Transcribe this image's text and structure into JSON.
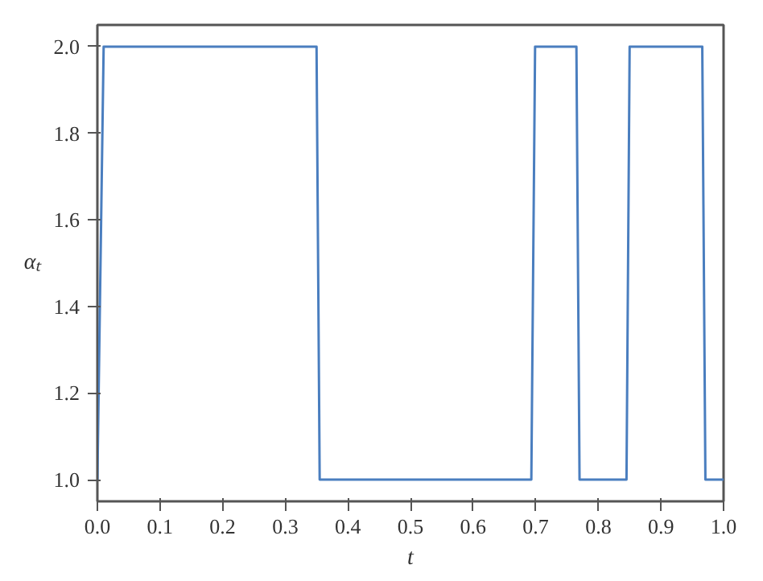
{
  "chart_data": {
    "type": "line",
    "xlabel": "t",
    "ylabel": "αₜ",
    "x": [
      0.0,
      0.01,
      0.35,
      0.355,
      0.693,
      0.699,
      0.765,
      0.77,
      0.845,
      0.85,
      0.966,
      0.971,
      1.0
    ],
    "series": [
      {
        "color": "#4a7ebf",
        "values": [
          1.0,
          2.0,
          2.0,
          1.0,
          1.0,
          2.0,
          2.0,
          1.0,
          1.0,
          2.0,
          2.0,
          1.0,
          1.0
        ]
      }
    ],
    "xlim": [
      0,
      1
    ],
    "ylim": [
      0.95,
      2.05
    ],
    "xticks": [
      {
        "value": 0,
        "label": "0.0"
      },
      0.1,
      0.2,
      0.3,
      0.4,
      0.5,
      0.6,
      0.7,
      0.8,
      0.9,
      {
        "value": 1,
        "label": "1.0"
      }
    ],
    "yticks": [
      {
        "value": 1,
        "label": "1.0"
      },
      1.2,
      1.4,
      1.6,
      1.8,
      {
        "value": 2,
        "label": "2.0"
      }
    ],
    "grid": false,
    "marker": "none",
    "line_style": "solid"
  }
}
